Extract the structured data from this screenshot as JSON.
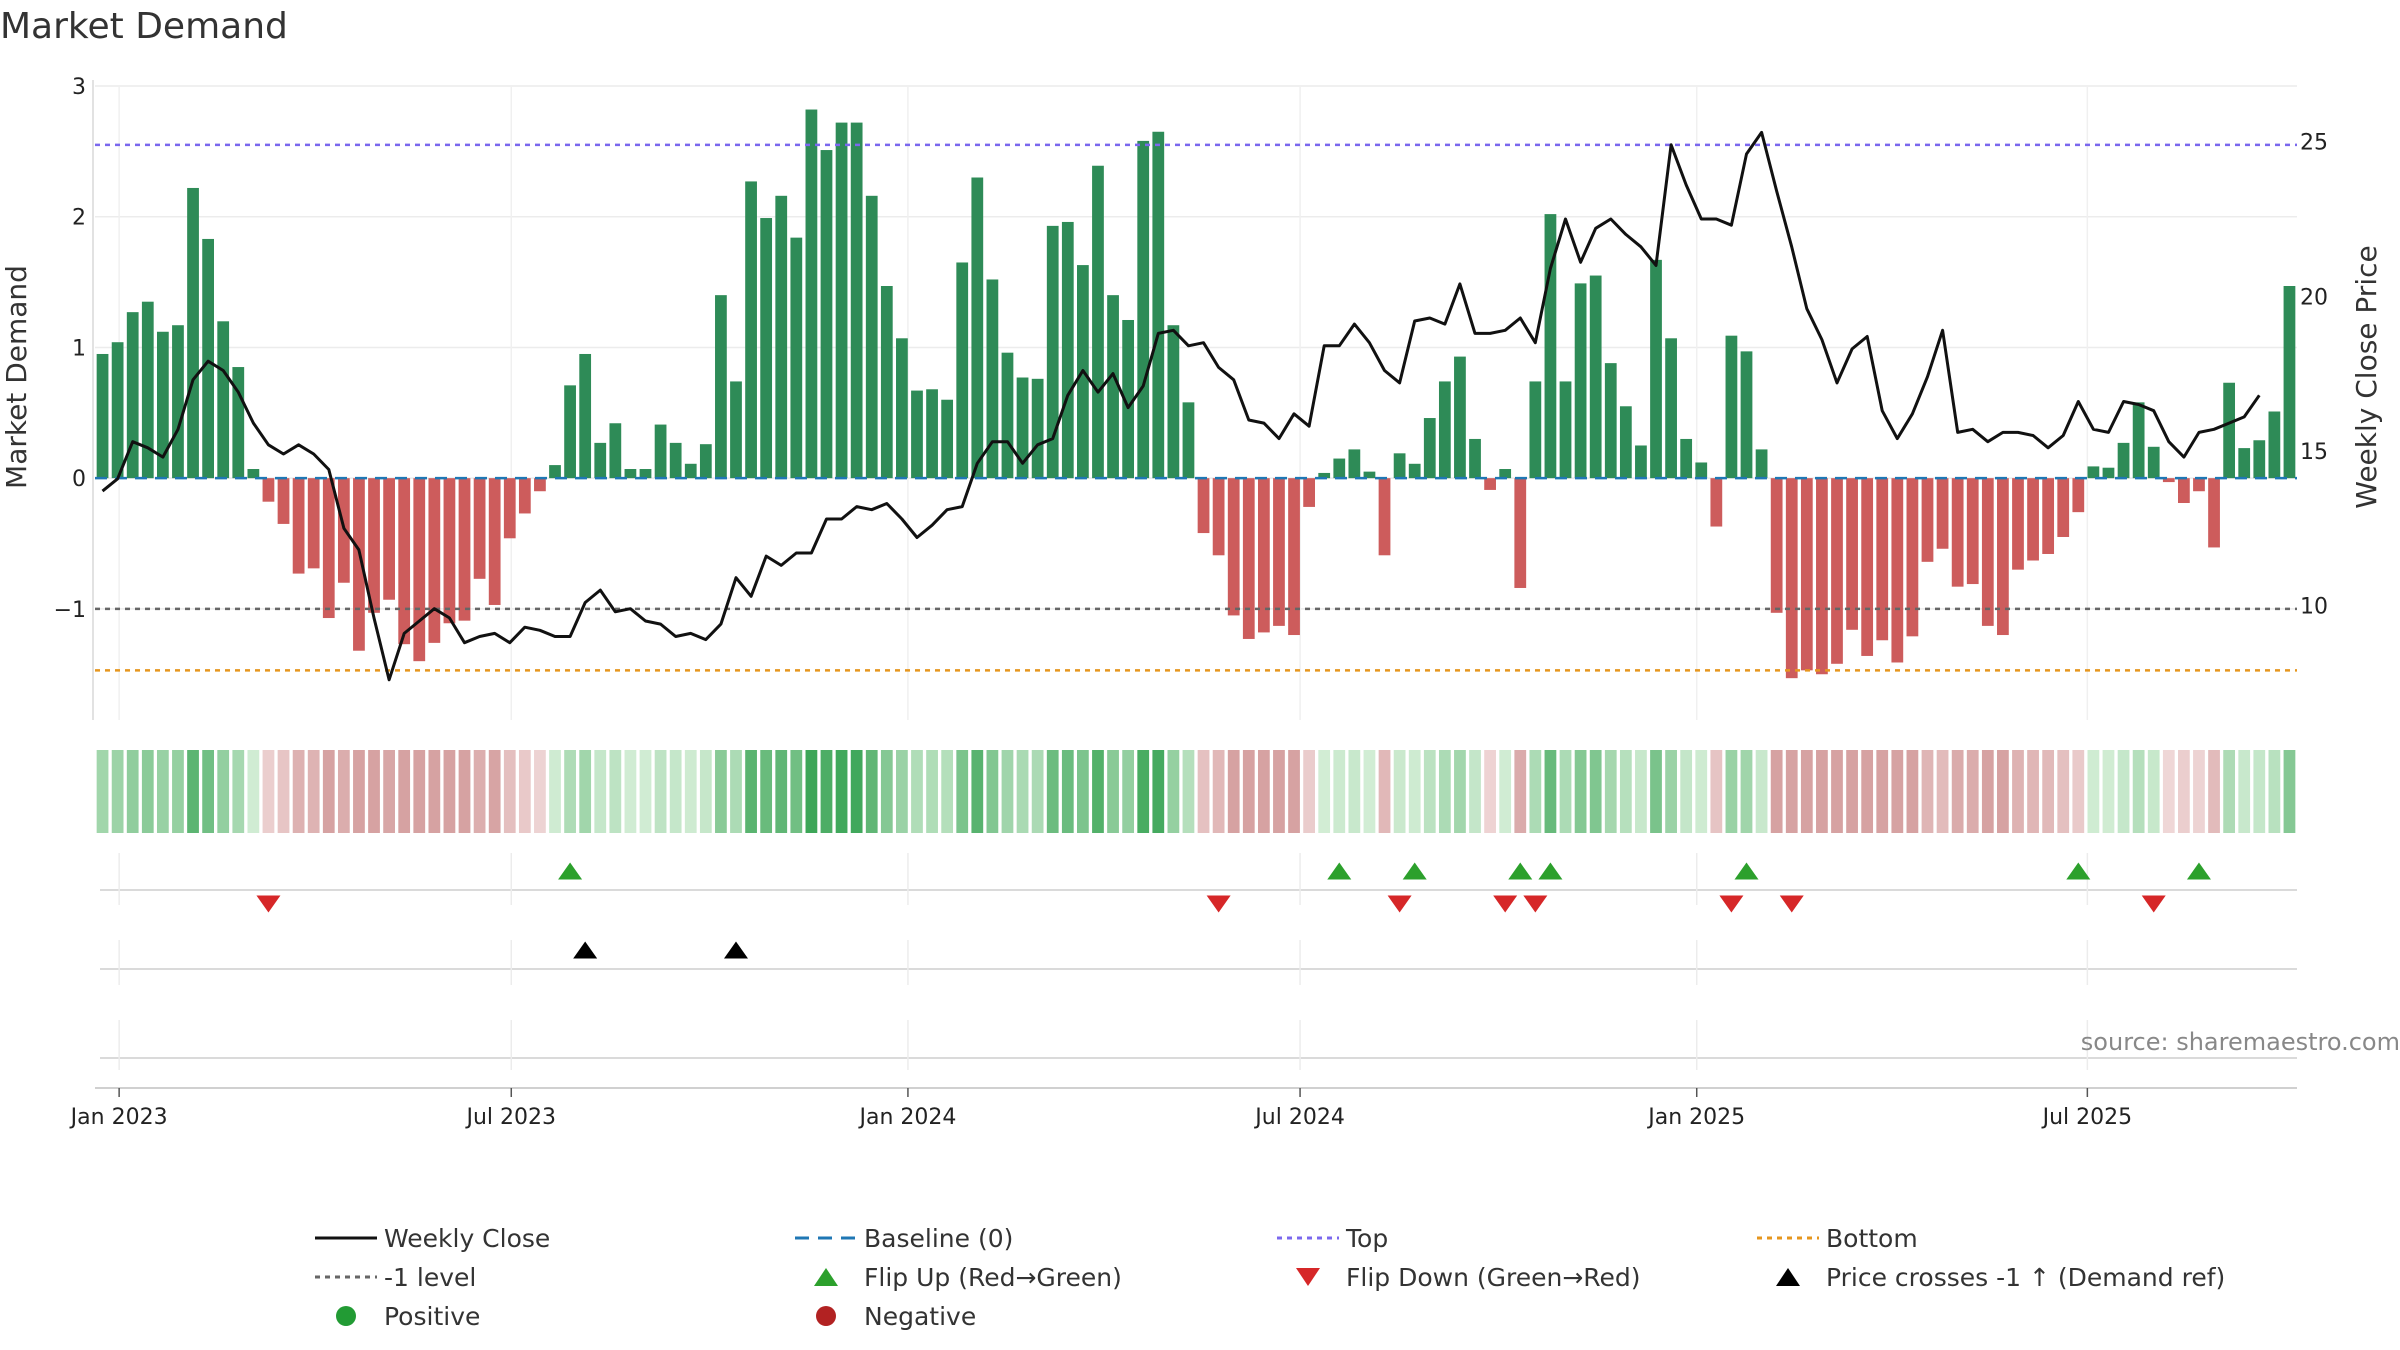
{
  "colors": {
    "positive": "#2e8b57",
    "negative": "#cd5c5c",
    "close": "#111111",
    "baseline": "#1f77b4",
    "top": "#7b68ee",
    "bottom": "#e6961e",
    "minus_one": "#666666",
    "flip_up": "#2ca02c",
    "flip_down": "#d62728",
    "cross": "#000000",
    "positive_dot": "#229b34",
    "negative_dot": "#b22222"
  },
  "chart_data": {
    "type": "bar",
    "title": "Market Demand",
    "ylabel": "Market Demand",
    "y2label": "Weekly Close Price",
    "source": "source: sharemaestro.com",
    "ylim": [
      -1.85,
      3.0
    ],
    "y2lim": [
      6.3,
      26.8
    ],
    "yticks": [
      3,
      2,
      1,
      0,
      -1
    ],
    "ytick_labels": [
      "3",
      "2",
      "1",
      "0",
      "−1"
    ],
    "y2ticks": [
      25,
      20,
      15,
      10
    ],
    "y2tick_labels": [
      "25",
      "20",
      "15",
      "10"
    ],
    "xticks": [
      {
        "label": "Jan 2023",
        "week": 1.6
      },
      {
        "label": "Jul 2023",
        "week": 27.6
      },
      {
        "label": "Jan 2024",
        "week": 53.9
      },
      {
        "label": "Jul 2024",
        "week": 79.9
      },
      {
        "label": "Jan 2025",
        "week": 106.2
      },
      {
        "label": "Jul 2025",
        "week": 132.1
      }
    ],
    "top_level": 2.55,
    "bottom_level": -1.47,
    "minus_one_level": -1,
    "demand": [
      0.95,
      1.04,
      1.27,
      1.35,
      1.12,
      1.17,
      2.22,
      1.83,
      1.2,
      0.85,
      0.07,
      -0.18,
      -0.35,
      -0.73,
      -0.69,
      -1.07,
      -0.8,
      -1.32,
      -1.03,
      -0.93,
      -1.27,
      -1.4,
      -1.26,
      -1.11,
      -1.09,
      -0.77,
      -0.97,
      -0.46,
      -0.27,
      -0.1,
      0.1,
      0.71,
      0.95,
      0.27,
      0.42,
      0.07,
      0.07,
      0.41,
      0.27,
      0.11,
      0.26,
      1.4,
      0.74,
      2.27,
      1.99,
      2.16,
      1.84,
      2.82,
      2.51,
      2.72,
      2.72,
      2.16,
      1.47,
      1.07,
      0.67,
      0.68,
      0.6,
      1.65,
      2.3,
      1.52,
      0.96,
      0.77,
      0.76,
      1.93,
      1.96,
      1.63,
      2.39,
      1.4,
      1.21,
      2.58,
      2.65,
      1.17,
      0.58,
      -0.42,
      -0.59,
      -1.05,
      -1.23,
      -1.18,
      -1.13,
      -1.2,
      -0.22,
      0.04,
      0.15,
      0.22,
      0.05,
      -0.59,
      0.19,
      0.11,
      0.46,
      0.74,
      0.93,
      0.3,
      -0.09,
      0.07,
      -0.84,
      0.74,
      2.02,
      0.74,
      1.49,
      1.55,
      0.88,
      0.55,
      0.25,
      1.67,
      1.07,
      0.3,
      0.12,
      -0.37,
      1.09,
      0.97,
      0.22,
      -1.03,
      -1.53,
      -1.47,
      -1.5,
      -1.42,
      -1.16,
      -1.36,
      -1.24,
      -1.41,
      -1.21,
      -0.64,
      -0.54,
      -0.83,
      -0.81,
      -1.13,
      -1.2,
      -0.7,
      -0.63,
      -0.58,
      -0.45,
      -0.26,
      0.09,
      0.08,
      0.27,
      0.58,
      0.24,
      -0.03,
      -0.19,
      -0.1,
      -0.53,
      0.73,
      0.23,
      0.29,
      0.51,
      1.47
    ],
    "weekly_close": [
      13.7,
      14.1,
      15.3,
      15.1,
      14.8,
      15.7,
      17.3,
      17.9,
      17.6,
      16.9,
      15.9,
      15.2,
      14.9,
      15.2,
      14.9,
      14.4,
      12.5,
      11.8,
      9.6,
      7.6,
      9.1,
      9.5,
      9.9,
      9.6,
      8.8,
      9.0,
      9.1,
      8.8,
      9.3,
      9.2,
      9.0,
      9.0,
      10.1,
      10.5,
      9.8,
      9.9,
      9.5,
      9.4,
      9.0,
      9.1,
      8.9,
      9.4,
      10.9,
      10.3,
      11.6,
      11.3,
      11.7,
      11.7,
      12.8,
      12.8,
      13.2,
      13.1,
      13.3,
      12.8,
      12.2,
      12.6,
      13.1,
      13.2,
      14.6,
      15.3,
      15.3,
      14.6,
      15.2,
      15.4,
      16.8,
      17.6,
      16.9,
      17.5,
      16.4,
      17.1,
      18.8,
      18.9,
      18.4,
      18.5,
      17.7,
      17.3,
      16.0,
      15.9,
      15.4,
      16.2,
      15.8,
      18.4,
      18.4,
      19.1,
      18.5,
      17.6,
      17.2,
      19.2,
      19.3,
      19.1,
      20.4,
      18.8,
      18.8,
      18.9,
      19.3,
      18.5,
      20.9,
      22.5,
      21.1,
      22.2,
      22.5,
      22.0,
      21.6,
      21.0,
      24.9,
      23.6,
      22.5,
      22.5,
      22.3,
      24.6,
      25.3,
      23.4,
      21.6,
      19.6,
      18.6,
      17.2,
      18.3,
      18.7,
      16.3,
      15.4,
      16.2,
      17.4,
      18.9,
      15.6,
      15.7,
      15.3,
      15.6,
      15.6,
      15.5,
      15.1,
      15.5,
      16.6,
      15.7,
      15.6,
      16.6,
      16.5,
      16.3,
      15.3,
      14.8,
      15.6,
      15.7,
      15.9,
      16.1,
      16.8
    ],
    "flip_up": [
      31,
      82,
      87,
      94,
      96,
      109,
      131,
      139
    ],
    "flip_down": [
      11,
      74,
      86,
      93,
      95,
      108,
      112,
      136
    ],
    "price_cross": [
      32,
      42
    ],
    "legend": [
      {
        "label": "Weekly Close",
        "key": "close"
      },
      {
        "label": "Baseline (0)",
        "key": "baseline"
      },
      {
        "label": "Top",
        "key": "top"
      },
      {
        "label": "Bottom",
        "key": "bottom"
      },
      {
        "label": "-1 level",
        "key": "minus_one"
      },
      {
        "label": "Flip Up (Red→Green)",
        "key": "flip_up"
      },
      {
        "label": "Flip Down (Green→Red)",
        "key": "flip_down"
      },
      {
        "label": "Price crosses -1 ↑ (Demand ref)",
        "key": "cross"
      },
      {
        "label": "Positive",
        "key": "positive_dot"
      },
      {
        "label": "Negative",
        "key": "negative_dot"
      }
    ]
  }
}
